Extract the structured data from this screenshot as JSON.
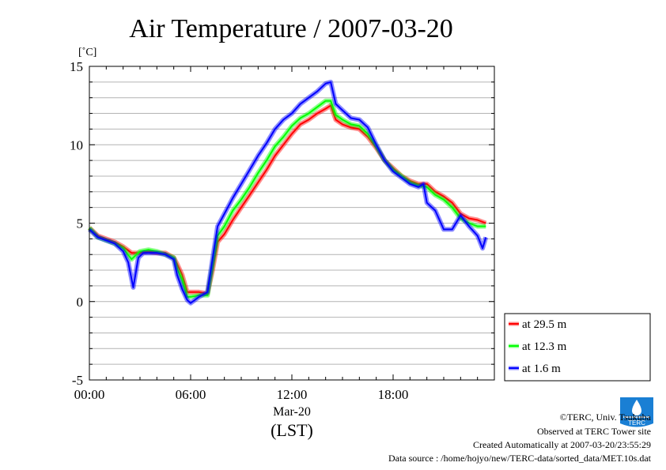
{
  "chart_data": {
    "type": "line",
    "title": "Air Temperature / 2007-03-20",
    "ylabel": "[˚C]",
    "xlabel": "(LST)",
    "date_label": "Mar-20",
    "ylim": [
      -5,
      15
    ],
    "xlim": [
      0,
      24
    ],
    "yticks": [
      -5,
      0,
      5,
      10,
      15
    ],
    "ytick_labels": [
      "-5",
      "0",
      "5",
      "10",
      "15"
    ],
    "xticks": [
      0,
      6,
      12,
      18
    ],
    "xtick_labels": [
      "00:00",
      "06:00",
      "12:00",
      "18:00"
    ],
    "grid": true,
    "legend_position": "right",
    "series": [
      {
        "name": "at 29.5 m",
        "color": "#ff0000",
        "x": [
          0,
          0.5,
          1,
          1.5,
          2,
          2.5,
          3,
          3.5,
          4,
          4.5,
          5,
          5.2,
          5.5,
          5.8,
          6,
          6.5,
          7,
          7.3,
          7.6,
          8,
          8.5,
          9,
          9.5,
          10,
          10.5,
          11,
          11.5,
          12,
          12.5,
          13,
          13.5,
          14,
          14.3,
          14.6,
          15,
          15.5,
          16,
          16.5,
          17,
          17.5,
          18,
          18.5,
          19,
          19.5,
          20,
          20.5,
          21,
          21.5,
          22,
          22.5,
          23,
          23.5
        ],
        "y": [
          4.7,
          4.2,
          4.0,
          3.8,
          3.5,
          3.1,
          3.1,
          3.2,
          3.1,
          3.1,
          2.8,
          2.4,
          1.7,
          0.6,
          0.6,
          0.6,
          0.5,
          2.0,
          3.8,
          4.3,
          5.2,
          6.0,
          6.8,
          7.6,
          8.4,
          9.3,
          10.0,
          10.7,
          11.3,
          11.6,
          12.0,
          12.3,
          12.5,
          11.6,
          11.3,
          11.1,
          11.0,
          10.5,
          9.8,
          9.0,
          8.5,
          8.0,
          7.7,
          7.5,
          7.5,
          7.0,
          6.7,
          6.3,
          5.6,
          5.3,
          5.2,
          5.0
        ]
      },
      {
        "name": "at 12.3 m",
        "color": "#00ff00",
        "x": [
          0,
          0.5,
          1,
          1.5,
          2,
          2.5,
          3,
          3.5,
          4,
          4.5,
          5,
          5.2,
          5.5,
          5.8,
          6,
          6.5,
          7,
          7.3,
          7.6,
          8,
          8.5,
          9,
          9.5,
          10,
          10.5,
          11,
          11.5,
          12,
          12.5,
          13,
          13.5,
          14,
          14.3,
          14.6,
          15,
          15.5,
          16,
          16.5,
          17,
          17.5,
          18,
          18.5,
          19,
          19.5,
          20,
          20.5,
          21,
          21.5,
          22,
          22.5,
          23,
          23.5
        ],
        "y": [
          4.7,
          4.1,
          3.9,
          3.7,
          3.4,
          2.7,
          3.2,
          3.3,
          3.2,
          3.0,
          2.8,
          2.1,
          1.4,
          0.3,
          0.3,
          0.4,
          0.4,
          2.3,
          4.2,
          4.8,
          5.8,
          6.5,
          7.3,
          8.2,
          9.0,
          9.9,
          10.5,
          11.2,
          11.7,
          12.0,
          12.4,
          12.8,
          12.8,
          11.9,
          11.6,
          11.3,
          11.2,
          10.7,
          9.9,
          9.0,
          8.4,
          8.0,
          7.6,
          7.4,
          7.3,
          6.8,
          6.5,
          6.0,
          5.3,
          5.0,
          4.8,
          4.8
        ]
      },
      {
        "name": "at 1.6 m",
        "color": "#0000ff",
        "x": [
          0,
          0.5,
          1,
          1.5,
          2,
          2.3,
          2.6,
          2.9,
          3.2,
          3.5,
          4,
          4.5,
          5,
          5.2,
          5.5,
          5.8,
          6,
          6.5,
          7,
          7.3,
          7.6,
          8,
          8.5,
          9,
          9.5,
          10,
          10.5,
          11,
          11.5,
          12,
          12.5,
          13,
          13.5,
          14,
          14.3,
          14.6,
          15,
          15.5,
          16,
          16.5,
          17,
          17.5,
          18,
          18.5,
          19,
          19.5,
          19.8,
          20,
          20.5,
          21,
          21.5,
          22,
          22.5,
          23,
          23.3,
          23.5
        ],
        "y": [
          4.6,
          4.1,
          3.9,
          3.7,
          3.2,
          2.5,
          0.9,
          2.8,
          3.1,
          3.1,
          3.1,
          3.0,
          2.7,
          1.7,
          0.8,
          0.1,
          -0.1,
          0.3,
          0.6,
          2.7,
          4.8,
          5.6,
          6.6,
          7.5,
          8.4,
          9.3,
          10.1,
          11.0,
          11.6,
          12.0,
          12.6,
          13.0,
          13.4,
          13.9,
          14.0,
          12.6,
          12.2,
          11.7,
          11.6,
          11.1,
          10.0,
          9.0,
          8.3,
          7.9,
          7.5,
          7.3,
          7.5,
          6.3,
          5.8,
          4.6,
          4.6,
          5.5,
          4.8,
          4.2,
          3.4,
          4.1
        ]
      }
    ]
  },
  "footer": {
    "copyright": "©TERC, Univ. Tsukuba",
    "observed": "Observed at TERC Tower site",
    "created": "Created Automatically at 2007-03-20/23:55:29",
    "source": "Data source : /home/hojyo/new/TERC-data/sorted_data/MET.10s.dat",
    "logo_text": "TERC"
  }
}
